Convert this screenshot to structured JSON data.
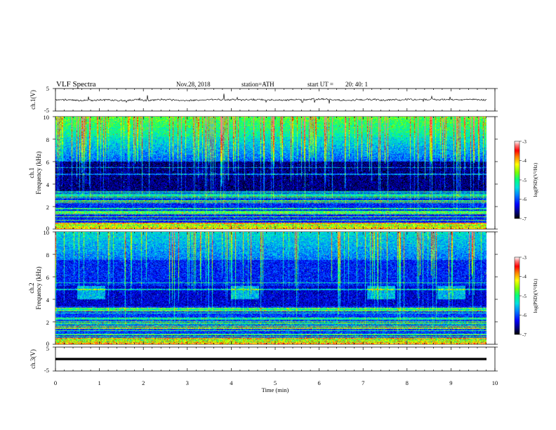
{
  "header": {
    "title": "VLF  Spectra",
    "date": "Nov.28, 2018",
    "station": "station=ATH",
    "start_label": "start  UT  =",
    "start_time": "20: 40: 1"
  },
  "colors": {
    "voltage_trace": "#111111",
    "ch3_trace": "#000000",
    "frame": "#000000",
    "colormap": [
      "#000000",
      "#00007a",
      "#0000ff",
      "#0080ff",
      "#00e0e0",
      "#00ff80",
      "#80ff00",
      "#ffff00",
      "#ff8000",
      "#ff0000",
      "#ff8080",
      "#ffffff"
    ]
  },
  "chart_data": [
    {
      "type": "line",
      "panel": "ch1-voltage",
      "ylabel": "ch.1(V)",
      "xlim": [
        0,
        10
      ],
      "ylim": [
        -5,
        5
      ],
      "yticks": [
        "5",
        "-5"
      ],
      "trace_level_v": 0,
      "trace_noise_v": 1
    },
    {
      "type": "heatmap",
      "panel": "ch1-spectrogram",
      "ylabel_line1": "ch.1",
      "ylabel_line2": "Frequency  (kHz)",
      "xlim": [
        0,
        9.8
      ],
      "ylim": [
        0,
        10
      ],
      "yticks": [
        "0",
        "2",
        "4",
        "6",
        "8",
        "10"
      ],
      "colorbar": {
        "label": "log(PSD)(V²/Hz)",
        "range": [
          -7,
          -3
        ],
        "ticks": [
          "-3",
          "-4",
          "-5",
          "-6",
          "-7"
        ]
      }
    },
    {
      "type": "heatmap",
      "panel": "ch2-spectrogram",
      "ylabel_line1": "ch.2",
      "ylabel_line2": "Frequency  (kHz)",
      "xlim": [
        0,
        9.8
      ],
      "ylim": [
        0,
        10
      ],
      "yticks": [
        "0",
        "2",
        "4",
        "6",
        "8",
        "10"
      ],
      "bursts_khz_4_to_5_at_min": [
        0.8,
        4.3,
        7.4,
        9.0
      ],
      "colorbar": {
        "label": "log(PSD)(V²/Hz)",
        "range": [
          -7,
          -3
        ],
        "ticks": [
          "-3",
          "-4",
          "-5",
          "-6",
          "-7"
        ]
      }
    },
    {
      "type": "line",
      "panel": "ch3-voltage",
      "ylabel": "ch.3(V)",
      "xlim": [
        0,
        10
      ],
      "ylim": [
        -5,
        5
      ],
      "yticks": [
        "5",
        "-5"
      ],
      "trace_level_v": 0
    }
  ],
  "xaxis": {
    "label": "Time  (min)",
    "range": [
      0,
      10
    ],
    "ticks": [
      "0",
      "1",
      "2",
      "3",
      "4",
      "5",
      "6",
      "7",
      "8",
      "9",
      "10"
    ]
  }
}
